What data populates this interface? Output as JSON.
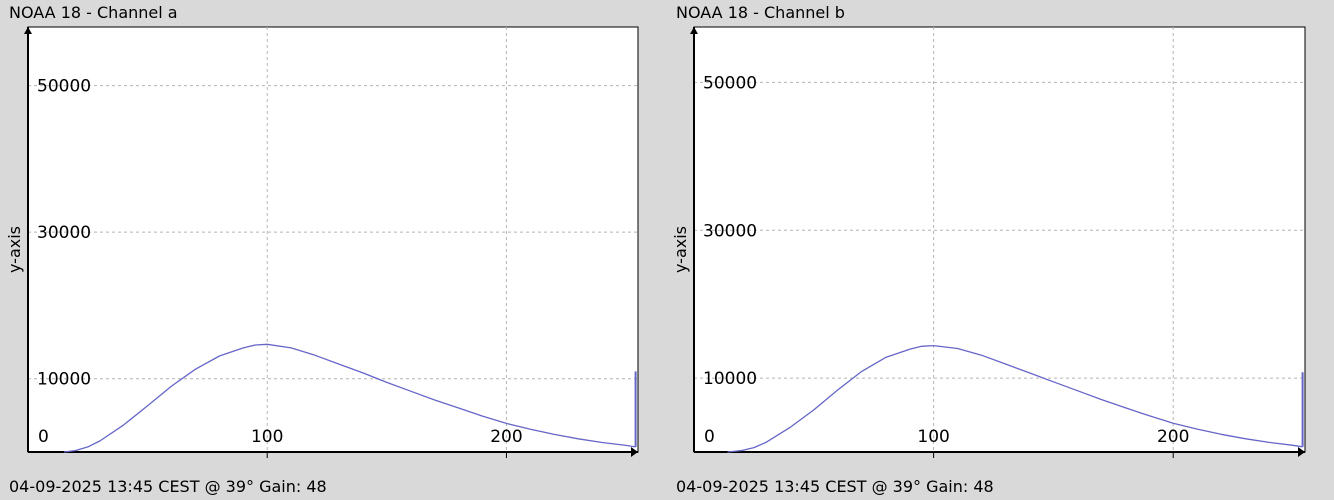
{
  "colors": {
    "background": "#d9d9d9",
    "plot_background": "#ffffff",
    "grid": "#b4b4b4",
    "series": "#6666c8",
    "axis": "#000000"
  },
  "panels": [
    {
      "title": "NOAA 18 - Channel a",
      "footer": "04-09-2025 13:45 CEST @ 39° Gain: 48",
      "ylabel": "y-axis"
    },
    {
      "title": "NOAA 18 - Channel b",
      "footer": "04-09-2025 13:45 CEST @ 39° Gain: 48",
      "ylabel": "y-axis"
    }
  ],
  "chart_data": [
    {
      "type": "line",
      "title": "NOAA 18 - Channel a",
      "xlabel": "",
      "ylabel": "y-axis",
      "xlim": [
        0,
        255
      ],
      "ylim": [
        0,
        58000
      ],
      "x_ticks": [
        100,
        200
      ],
      "x_tick_labels": [
        "100",
        "200"
      ],
      "y_ticks": [
        10000,
        30000,
        50000
      ],
      "y_tick_labels": [
        "10000",
        "30000",
        "50000"
      ],
      "origin_label": "0",
      "grid": true,
      "series": [
        {
          "color": "#6666c8",
          "x": [
            15,
            20,
            25,
            30,
            40,
            50,
            60,
            70,
            80,
            90,
            95,
            100,
            110,
            120,
            130,
            140,
            150,
            160,
            170,
            180,
            190,
            200,
            210,
            220,
            230,
            240,
            250,
            254
          ],
          "y": [
            0,
            200,
            700,
            1500,
            3700,
            6300,
            9000,
            11300,
            13100,
            14200,
            14600,
            14700,
            14200,
            13200,
            12000,
            10800,
            9500,
            8300,
            7100,
            6000,
            4900,
            3900,
            3100,
            2400,
            1800,
            1300,
            900,
            700
          ]
        },
        {
          "color": "#6666c8",
          "x": [
            254,
            254
          ],
          "y": [
            700,
            11000
          ]
        }
      ]
    },
    {
      "type": "line",
      "title": "NOAA 18 - Channel b",
      "xlabel": "",
      "ylabel": "y-axis",
      "xlim": [
        0,
        255
      ],
      "ylim": [
        0,
        57500
      ],
      "x_ticks": [
        100,
        200
      ],
      "x_tick_labels": [
        "100",
        "200"
      ],
      "y_ticks": [
        10000,
        30000,
        50000
      ],
      "y_tick_labels": [
        "10000",
        "30000",
        "50000"
      ],
      "origin_label": "0",
      "grid": true,
      "series": [
        {
          "color": "#6666c8",
          "x": [
            14,
            20,
            25,
            30,
            40,
            50,
            60,
            70,
            80,
            90,
            95,
            100,
            110,
            120,
            130,
            140,
            150,
            160,
            170,
            180,
            190,
            200,
            210,
            220,
            230,
            240,
            250,
            254
          ],
          "y": [
            0,
            200,
            600,
            1300,
            3300,
            5700,
            8400,
            10900,
            12800,
            13900,
            14300,
            14400,
            14000,
            13100,
            11900,
            10700,
            9500,
            8300,
            7100,
            6000,
            4900,
            3900,
            3100,
            2400,
            1800,
            1300,
            900,
            700
          ]
        },
        {
          "color": "#6666c8",
          "x": [
            254,
            254
          ],
          "y": [
            700,
            10800
          ]
        }
      ]
    }
  ]
}
